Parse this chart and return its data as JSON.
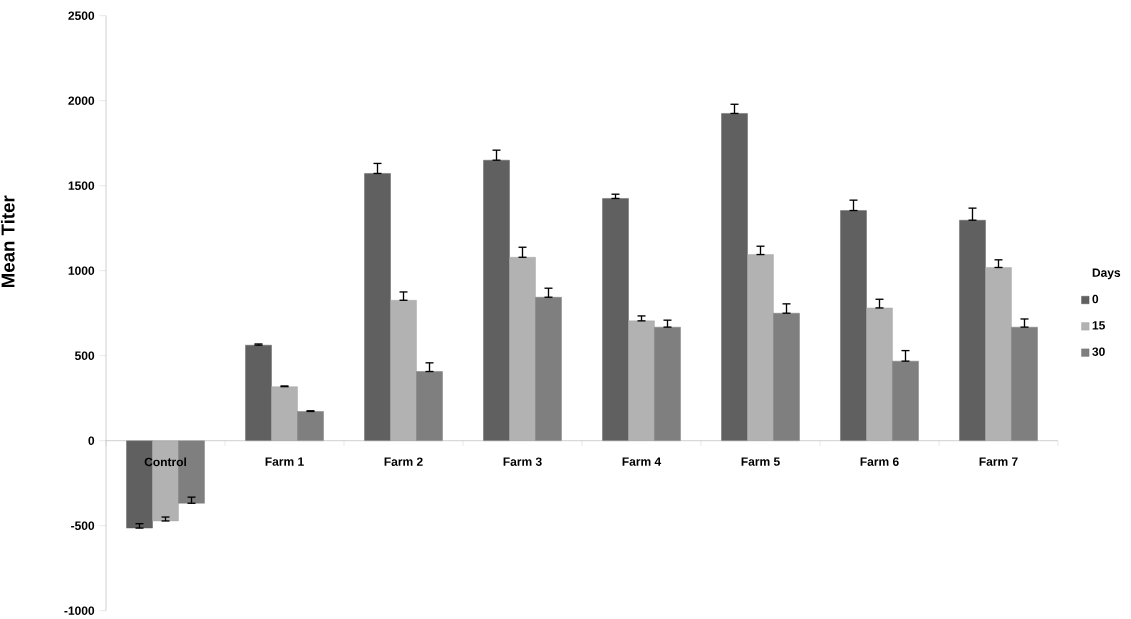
{
  "chart_data": {
    "type": "bar",
    "ylabel": "Mean Titer",
    "legend_title": "Days",
    "legend": "right",
    "categories": [
      "Control",
      "Farm 1",
      "Farm 2",
      "Farm 3",
      "Farm 4",
      "Farm 5",
      "Farm 6",
      "Farm 7"
    ],
    "ylim": [
      -1000,
      2500
    ],
    "yticks": [
      -1000,
      -500,
      0,
      500,
      1000,
      1500,
      2000,
      2500
    ],
    "series": [
      {
        "name": "0",
        "color": "#606060",
        "values": [
          -514,
          562,
          1572,
          1650,
          1425,
          1925,
          1354,
          1297
        ],
        "errors": [
          [
            -514,
            -488
          ],
          [
            562,
            569
          ],
          [
            1572,
            1631
          ],
          [
            1650,
            1709
          ],
          [
            1425,
            1450
          ],
          [
            1925,
            1979
          ],
          [
            1354,
            1415
          ],
          [
            1297,
            1368
          ]
        ]
      },
      {
        "name": "15",
        "color": "#b2b2b2",
        "values": [
          -472,
          318,
          826,
          1079,
          705,
          1095,
          781,
          1019
        ],
        "errors": [
          [
            -472,
            -449
          ],
          [
            318,
            322
          ],
          [
            826,
            875
          ],
          [
            1079,
            1138
          ],
          [
            705,
            734
          ],
          [
            1095,
            1144
          ],
          [
            781,
            832
          ],
          [
            1019,
            1064
          ]
        ]
      },
      {
        "name": "30",
        "color": "#7f7f7f",
        "values": [
          -368,
          172,
          407,
          844,
          668,
          750,
          468,
          668
        ],
        "errors": [
          [
            -368,
            -332
          ],
          [
            172,
            176
          ],
          [
            407,
            458
          ],
          [
            844,
            897
          ],
          [
            668,
            709
          ],
          [
            750,
            805
          ],
          [
            468,
            530
          ],
          [
            668,
            716
          ]
        ]
      }
    ]
  }
}
